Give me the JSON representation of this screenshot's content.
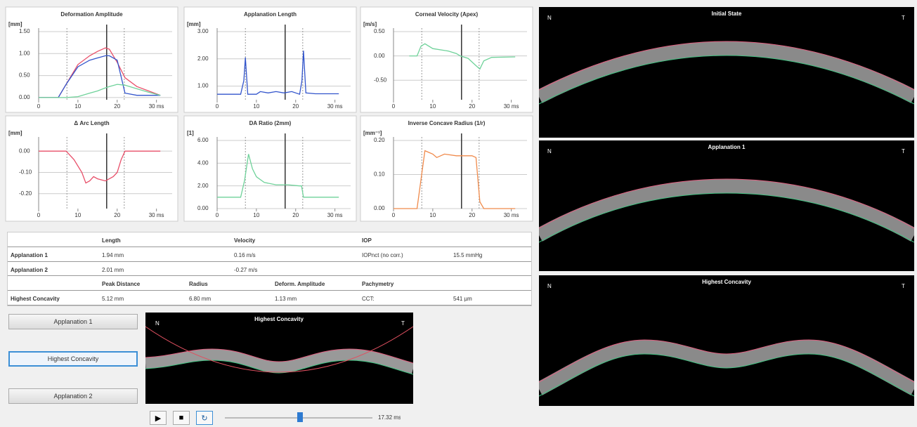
{
  "charts": [
    {
      "type": "line",
      "title": "Deformation Amplitude",
      "unit": "[mm]",
      "xlim": [
        0,
        34
      ],
      "ylim": [
        -0.05,
        1.5
      ],
      "xticks": [
        0,
        10,
        20,
        {
          "value": 30,
          "label": "30 ms"
        }
      ],
      "yticks": [
        {
          "value": 0,
          "label": "0.00"
        },
        {
          "value": 0.5,
          "label": "0.50"
        },
        {
          "value": 1,
          "label": "1.00"
        },
        {
          "value": 1.5,
          "label": "1.50"
        }
      ],
      "x": [
        0,
        5,
        7,
        10,
        13,
        15,
        17,
        18,
        20,
        22,
        25,
        28,
        31
      ],
      "series": [
        {
          "color": "#e8506a",
          "values": [
            0,
            0,
            0.3,
            0.75,
            0.95,
            1.05,
            1.13,
            1.1,
            0.8,
            0.45,
            0.25,
            0.15,
            0.05
          ]
        },
        {
          "color": "#3355cc",
          "values": [
            0,
            0,
            0.3,
            0.7,
            0.85,
            0.9,
            0.95,
            0.95,
            0.85,
            0.1,
            0.05,
            0.05,
            0.05
          ]
        },
        {
          "color": "#6fd29a",
          "values": [
            0,
            0,
            0,
            0.02,
            0.1,
            0.15,
            0.22,
            0.25,
            0.3,
            0.28,
            0.2,
            0.12,
            0.05
          ]
        }
      ]
    },
    {
      "type": "line",
      "title": "Applanation Length",
      "unit": "[mm]",
      "xlim": [
        0,
        34
      ],
      "ylim": [
        0.5,
        3
      ],
      "xticks": [
        0,
        10,
        20,
        {
          "value": 30,
          "label": "30 ms"
        }
      ],
      "yticks": [
        {
          "value": 1,
          "label": "1.00"
        },
        {
          "value": 2,
          "label": "2.00"
        },
        {
          "value": 3,
          "label": "3.00"
        }
      ],
      "x": [
        0,
        6,
        6.8,
        7.2,
        7.8,
        10,
        11,
        13,
        15,
        17,
        19,
        21,
        21.6,
        22,
        22.6,
        25,
        31
      ],
      "series": [
        {
          "color": "#3355cc",
          "values": [
            0.7,
            0.7,
            1.2,
            2.05,
            0.7,
            0.7,
            0.8,
            0.75,
            0.8,
            0.75,
            0.8,
            0.7,
            1.2,
            2.3,
            0.75,
            0.72,
            0.72
          ]
        }
      ]
    },
    {
      "type": "line",
      "title": "Corneal Velocity (Apex)",
      "unit": "[m/s]",
      "xlim": [
        0,
        34
      ],
      "ylim": [
        -0.9,
        0.5
      ],
      "xticks": [
        0,
        10,
        20,
        {
          "value": 30,
          "label": "30 ms"
        }
      ],
      "yticks": [
        {
          "value": 0.5,
          "label": "0.50"
        },
        {
          "value": 0,
          "label": "0.00"
        },
        {
          "value": -0.5,
          "label": "-0.50"
        }
      ],
      "x": [
        4,
        6,
        7,
        8,
        10,
        14,
        16,
        17,
        19,
        21,
        22,
        23,
        25,
        31
      ],
      "series": [
        {
          "color": "#6fd29a",
          "values": [
            0,
            0,
            0.2,
            0.25,
            0.15,
            0.1,
            0.05,
            0,
            -0.05,
            -0.2,
            -0.27,
            -0.1,
            -0.03,
            -0.02
          ]
        }
      ]
    },
    {
      "type": "line",
      "title": "Δ Arc Length",
      "unit": "[mm]",
      "xlim": [
        0,
        34
      ],
      "ylim": [
        -0.27,
        0.05
      ],
      "xticks": [
        0,
        10,
        20,
        {
          "value": 30,
          "label": "30 ms"
        }
      ],
      "yticks": [
        {
          "value": 0,
          "label": "0.00"
        },
        {
          "value": -0.1,
          "label": "-0.10"
        },
        {
          "value": -0.2,
          "label": "-0.20"
        }
      ],
      "x": [
        0,
        7,
        9,
        11,
        12,
        13,
        14,
        15,
        17,
        19,
        20,
        21,
        22,
        31
      ],
      "series": [
        {
          "color": "#e8506a",
          "values": [
            0,
            0,
            -0.04,
            -0.1,
            -0.15,
            -0.14,
            -0.12,
            -0.13,
            -0.14,
            -0.12,
            -0.1,
            -0.04,
            0,
            0
          ]
        }
      ]
    },
    {
      "type": "line",
      "title": "DA Ratio (2mm)",
      "unit": "[1]",
      "xlim": [
        0,
        34
      ],
      "ylim": [
        0,
        6
      ],
      "xticks": [
        0,
        10,
        20,
        {
          "value": 30,
          "label": "30 ms"
        }
      ],
      "yticks": [
        {
          "value": 0,
          "label": "0.00"
        },
        {
          "value": 2,
          "label": "2.00"
        },
        {
          "value": 4,
          "label": "4.00"
        },
        {
          "value": 6,
          "label": "6.00"
        }
      ],
      "x": [
        0,
        6,
        7,
        8,
        9,
        10,
        12,
        15,
        18,
        21,
        21.5,
        22,
        31
      ],
      "series": [
        {
          "color": "#6fd29a",
          "values": [
            1,
            1,
            2.5,
            4.8,
            3.5,
            2.8,
            2.3,
            2.1,
            2.1,
            2.0,
            2.0,
            1.0,
            1.0
          ]
        }
      ]
    },
    {
      "type": "line",
      "title": "Inverse Concave Radius (1/r)",
      "unit": "[mm⁻¹]",
      "xlim": [
        0,
        34
      ],
      "ylim": [
        0,
        0.2
      ],
      "xticks": [
        0,
        10,
        20,
        {
          "value": 30,
          "label": "30 ms"
        }
      ],
      "yticks": [
        {
          "value": 0,
          "label": "0.00"
        },
        {
          "value": 0.1,
          "label": "0.10"
        },
        {
          "value": 0.2,
          "label": "0.20"
        }
      ],
      "x": [
        0,
        6,
        8,
        10,
        11,
        13,
        16,
        20,
        21,
        22,
        23,
        31
      ],
      "series": [
        {
          "color": "#f08a4b",
          "values": [
            0,
            0,
            0.17,
            0.16,
            0.15,
            0.16,
            0.155,
            0.155,
            0.15,
            0.02,
            0,
            0
          ]
        }
      ]
    }
  ],
  "applanation_times": [
    7.2,
    21.8
  ],
  "time": {
    "value": 17.32,
    "label": "17.32 ms"
  },
  "table": {
    "rows": [
      [
        null,
        "Length",
        null,
        "Velocity",
        null,
        "IOP",
        null
      ],
      [
        "Applanation 1",
        "1.94 mm",
        null,
        "0.16 m/s",
        null,
        "IOPnct (no corr.)",
        "15.5 mmHg"
      ],
      [
        "Applanation 2",
        "2.01 mm",
        null,
        "-0.27 m/s",
        null,
        null,
        null
      ],
      [
        null,
        "Peak Distance",
        "Radius",
        null,
        "Deform. Amplitude",
        "Pachymetry",
        null
      ],
      [
        "Highest Concavity",
        "5.12 mm",
        "6.80 mm",
        null,
        "1.13 mm",
        "CCT:",
        "541 µm"
      ]
    ]
  },
  "buttons": [
    "Applanation 1",
    "Highest Concavity",
    "Applanation 2"
  ],
  "preview": {
    "title": "Highest Concavity",
    "nasal": "N",
    "temporal": "T"
  },
  "scans": [
    {
      "title": "Initial State",
      "nasal": "N",
      "temporal": "T"
    },
    {
      "title": "Applanation 1",
      "nasal": "N",
      "temporal": "T"
    },
    {
      "title": "Highest Concavity",
      "nasal": "N",
      "temporal": "T"
    }
  ]
}
